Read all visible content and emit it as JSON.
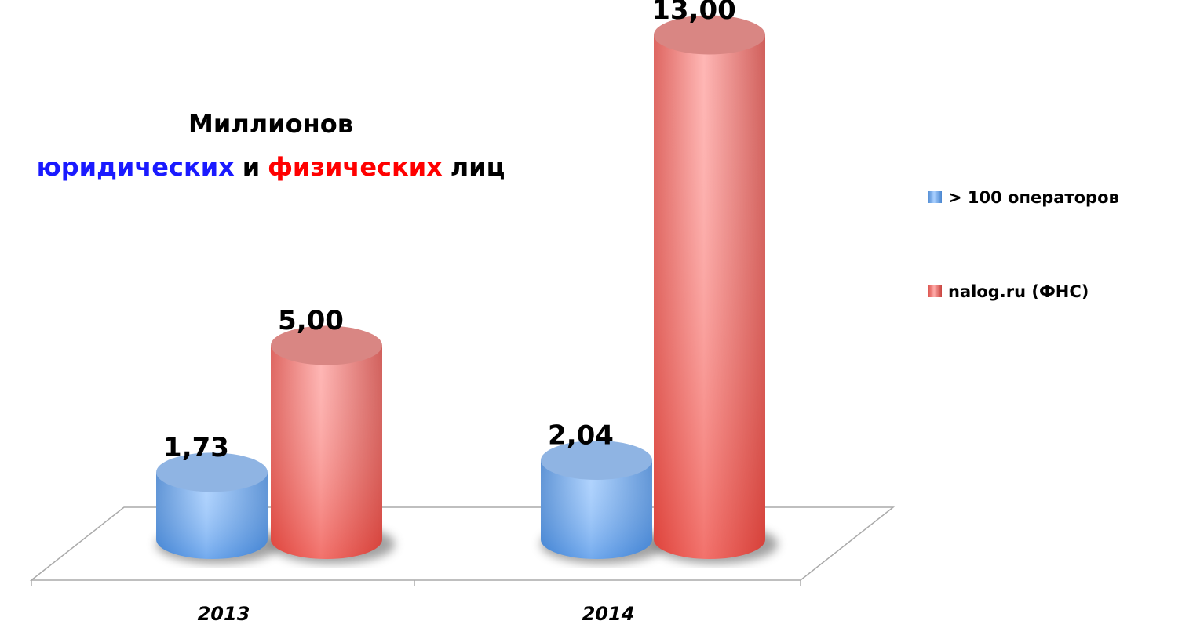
{
  "chart_data": {
    "type": "cylinder-bar",
    "title_lines": [
      [
        {
          "text": "Миллионов",
          "color": "#000000"
        }
      ],
      [
        {
          "text": "юридических",
          "color": "#1a1aff"
        },
        {
          "text": "и",
          "color": "#000000"
        },
        {
          "text": "физических",
          "color": "#ff0000"
        },
        {
          "text": "лиц",
          "color": "#000000"
        }
      ]
    ],
    "categories": [
      "2013",
      "2014"
    ],
    "series": [
      {
        "name": "> 100 операторов",
        "color": "#5b9bd5",
        "values": [
          1.73,
          2.04
        ],
        "value_labels": [
          "1,73",
          "2,04"
        ]
      },
      {
        "name": "nalog.ru (ФНС)",
        "color": "#e8605c",
        "values": [
          5.0,
          13.0
        ],
        "value_labels": [
          "5,00",
          "13,00"
        ]
      }
    ],
    "legend": "right"
  }
}
